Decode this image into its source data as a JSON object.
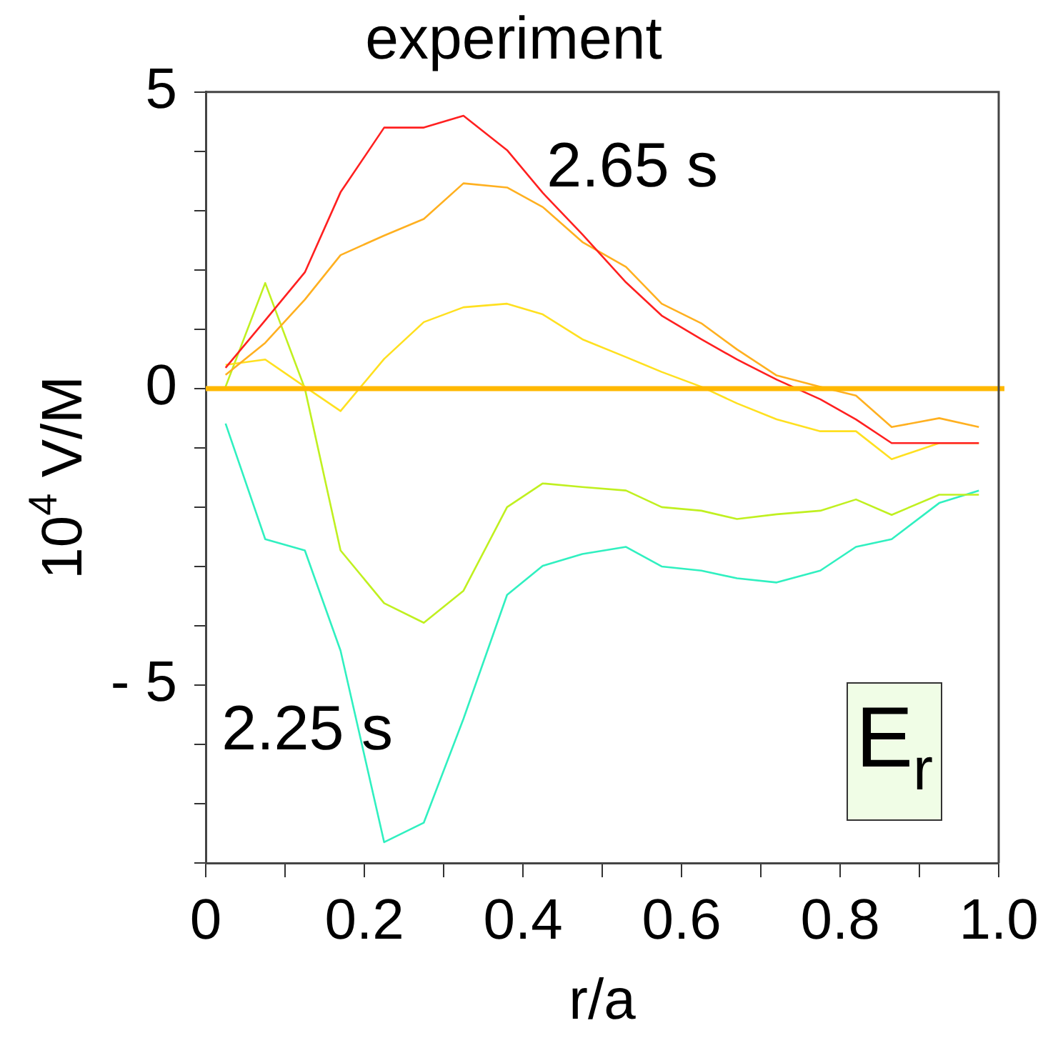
{
  "chart_data": {
    "type": "line",
    "title": "experiment",
    "xlabel": "r/a",
    "ylabel": "10$^{4}$ V/M",
    "x": [
      0.025,
      0.075,
      0.125,
      0.17,
      0.225,
      0.275,
      0.325,
      0.38,
      0.425,
      0.475,
      0.53,
      0.575,
      0.625,
      0.67,
      0.72,
      0.775,
      0.82,
      0.865,
      0.925,
      0.975
    ],
    "series": [
      {
        "color": "#ff2020",
        "values": [
          0.35,
          1.15,
          1.96,
          3.31,
          4.4,
          4.4,
          4.6,
          4.02,
          3.3,
          2.6,
          1.79,
          1.23,
          0.83,
          0.49,
          0.15,
          -0.18,
          -0.52,
          -0.92,
          -0.92,
          -0.92
        ]
      },
      {
        "color": "#ffb020",
        "values": [
          0.23,
          0.77,
          1.5,
          2.25,
          2.58,
          2.86,
          3.46,
          3.39,
          3.06,
          2.47,
          2.05,
          1.43,
          1.1,
          0.66,
          0.22,
          0.03,
          -0.12,
          -0.65,
          -0.5,
          -0.65
        ]
      },
      {
        "color": "#ffe020",
        "values": [
          0.4,
          0.49,
          0.03,
          -0.38,
          0.5,
          1.12,
          1.37,
          1.43,
          1.25,
          0.83,
          0.53,
          0.28,
          0.03,
          -0.25,
          -0.52,
          -0.72,
          -0.72,
          -1.19,
          -0.92,
          -0.92
        ]
      },
      {
        "color": "#c0f020",
        "values": [
          0.03,
          1.78,
          0.0,
          -2.73,
          -3.62,
          -3.95,
          -3.41,
          -2.0,
          -1.6,
          -1.66,
          -1.72,
          -2.0,
          -2.06,
          -2.2,
          -2.12,
          -2.06,
          -1.87,
          -2.13,
          -1.79,
          -1.79
        ]
      },
      {
        "color": "#30f0c0",
        "values": [
          -0.59,
          -2.54,
          -2.73,
          -4.42,
          -7.65,
          -7.32,
          -5.57,
          -3.48,
          -2.99,
          -2.79,
          -2.67,
          -3.0,
          -3.07,
          -3.2,
          -3.27,
          -3.07,
          -2.67,
          -2.54,
          -1.93,
          -1.72
        ]
      }
    ],
    "xlim": [
      0,
      1
    ],
    "xticks": [
      {
        "value": 0,
        "label": "0"
      },
      {
        "value": 0.1,
        "label": null
      },
      {
        "value": 0.2,
        "label": "0.2"
      },
      {
        "value": 0.3,
        "label": null
      },
      {
        "value": 0.4,
        "label": "0.4"
      },
      {
        "value": 0.5,
        "label": null
      },
      {
        "value": 0.6,
        "label": "0.6"
      },
      {
        "value": 0.7,
        "label": null
      },
      {
        "value": 0.8,
        "label": "0.8"
      },
      {
        "value": 0.9,
        "label": null
      },
      {
        "value": 1,
        "label": "1.0"
      }
    ],
    "ylim": [
      -8,
      5
    ],
    "yticks": [
      {
        "value": -8,
        "label": null
      },
      {
        "value": -7,
        "label": null
      },
      {
        "value": -6,
        "label": null
      },
      {
        "value": -5,
        "label": "- 5"
      },
      {
        "value": -4,
        "label": null
      },
      {
        "value": -3,
        "label": null
      },
      {
        "value": -2,
        "label": null
      },
      {
        "value": -1,
        "label": null
      },
      0,
      {
        "value": 1,
        "label": null
      },
      {
        "value": 2,
        "label": null
      },
      {
        "value": 3,
        "label": null
      },
      {
        "value": 4,
        "label": null
      },
      5
    ],
    "ref_lines": [
      {
        "axis": "y",
        "value": 0,
        "color": "#ffb800"
      }
    ],
    "annotations": [
      "2.65 s",
      "2.25 s",
      "E$_{r}$"
    ],
    "grid": false,
    "legend": false,
    "marker": "none",
    "line_style": "solid"
  }
}
